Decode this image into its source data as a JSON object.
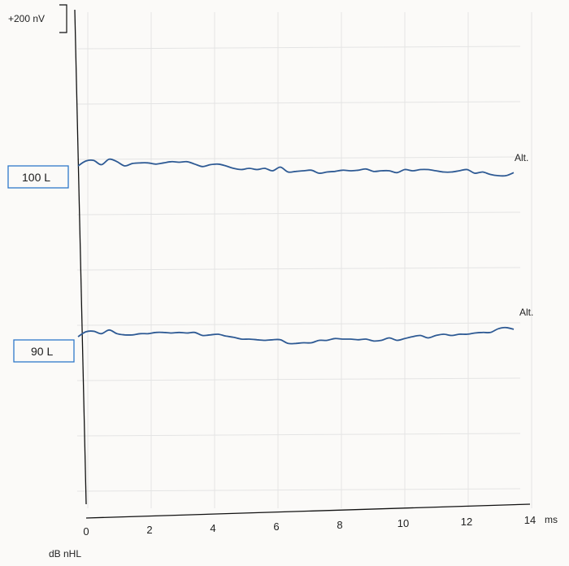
{
  "chart_data": {
    "type": "line",
    "x_unit": "ms",
    "y_unit": "dB nHL",
    "scale_bar": "+200 nV",
    "xlim": [
      0,
      14
    ],
    "xticks": [
      "0",
      "2",
      "4",
      "6",
      "8",
      "10",
      "12",
      "14"
    ],
    "grid": true,
    "colors": {
      "trace": "#2e5a94",
      "box": "#2f78c9",
      "axis": "#111111",
      "grid": "#e4e4e4"
    },
    "series": [
      {
        "name": "100 L",
        "trace_label": "Alt.",
        "x": [
          0.0,
          0.25,
          0.5,
          0.75,
          1.0,
          1.25,
          1.5,
          1.75,
          2.0,
          2.25,
          2.5,
          2.75,
          3.0,
          3.25,
          3.5,
          3.75,
          4.0,
          4.25,
          4.5,
          4.75,
          5.0,
          5.25,
          5.5,
          5.75,
          6.0,
          6.25,
          6.5,
          6.75,
          7.0,
          7.25,
          7.5,
          7.75,
          8.0,
          8.25,
          8.5,
          8.75,
          9.0,
          9.25,
          9.5,
          9.75,
          10.0,
          10.25,
          10.5,
          10.75,
          11.0,
          11.25,
          11.5,
          11.75,
          12.0,
          12.25,
          12.5,
          12.75,
          13.0,
          13.25,
          13.5,
          13.75,
          14.0
        ],
        "y": [
          0.0,
          0.08,
          0.09,
          0.02,
          0.11,
          0.07,
          0.0,
          0.04,
          0.05,
          0.05,
          0.03,
          0.05,
          0.07,
          0.06,
          0.07,
          0.03,
          -0.01,
          0.02,
          0.03,
          0.0,
          -0.04,
          -0.06,
          -0.04,
          -0.06,
          -0.04,
          -0.08,
          -0.02,
          -0.1,
          -0.09,
          -0.08,
          -0.07,
          -0.12,
          -0.1,
          -0.09,
          -0.07,
          -0.08,
          -0.07,
          -0.05,
          -0.09,
          -0.08,
          -0.08,
          -0.11,
          -0.06,
          -0.08,
          -0.06,
          -0.06,
          -0.08,
          -0.1,
          -0.1,
          -0.08,
          -0.06,
          -0.12,
          -0.1,
          -0.14,
          -0.16,
          -0.16,
          -0.11
        ]
      },
      {
        "name": "90 L",
        "trace_label": "Alt.",
        "x": [
          0.0,
          0.25,
          0.5,
          0.75,
          1.0,
          1.25,
          1.5,
          1.75,
          2.0,
          2.25,
          2.5,
          2.75,
          3.0,
          3.25,
          3.5,
          3.75,
          4.0,
          4.25,
          4.5,
          4.75,
          5.0,
          5.25,
          5.5,
          5.75,
          6.0,
          6.25,
          6.5,
          6.75,
          7.0,
          7.25,
          7.5,
          7.75,
          8.0,
          8.25,
          8.5,
          8.75,
          9.0,
          9.25,
          9.5,
          9.75,
          10.0,
          10.25,
          10.5,
          10.75,
          11.0,
          11.25,
          11.5,
          11.75,
          12.0,
          12.25,
          12.5,
          12.75,
          13.0,
          13.25,
          13.5,
          13.75,
          14.0
        ],
        "y": [
          0.0,
          0.08,
          0.09,
          0.05,
          0.11,
          0.05,
          0.03,
          0.03,
          0.05,
          0.05,
          0.07,
          0.07,
          0.06,
          0.07,
          0.06,
          0.07,
          0.02,
          0.03,
          0.04,
          0.01,
          -0.01,
          -0.04,
          -0.04,
          -0.05,
          -0.06,
          -0.05,
          -0.05,
          -0.11,
          -0.11,
          -0.1,
          -0.1,
          -0.06,
          -0.06,
          -0.03,
          -0.04,
          -0.04,
          -0.05,
          -0.04,
          -0.07,
          -0.06,
          -0.02,
          -0.06,
          -0.03,
          0.0,
          0.02,
          -0.02,
          0.02,
          0.04,
          0.02,
          0.04,
          0.04,
          0.06,
          0.07,
          0.07,
          0.13,
          0.15,
          0.12
        ]
      }
    ]
  }
}
